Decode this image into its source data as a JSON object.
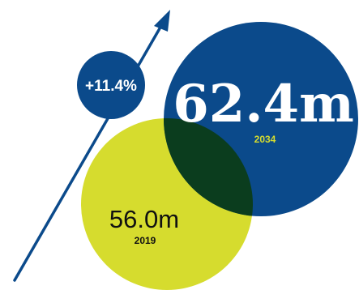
{
  "chart_data": {
    "type": "bubble",
    "series": [
      {
        "value_label": "56.0m",
        "year": "2019",
        "value": 56.0,
        "color": "#d6dc2e"
      },
      {
        "value_label": "62.4m",
        "year": "2034",
        "value": 62.4,
        "color": "#0b4a8b"
      }
    ],
    "overlap_color": "#0b3d1e",
    "growth": {
      "label": "+11.4%",
      "color": "#0b4a8b"
    }
  }
}
